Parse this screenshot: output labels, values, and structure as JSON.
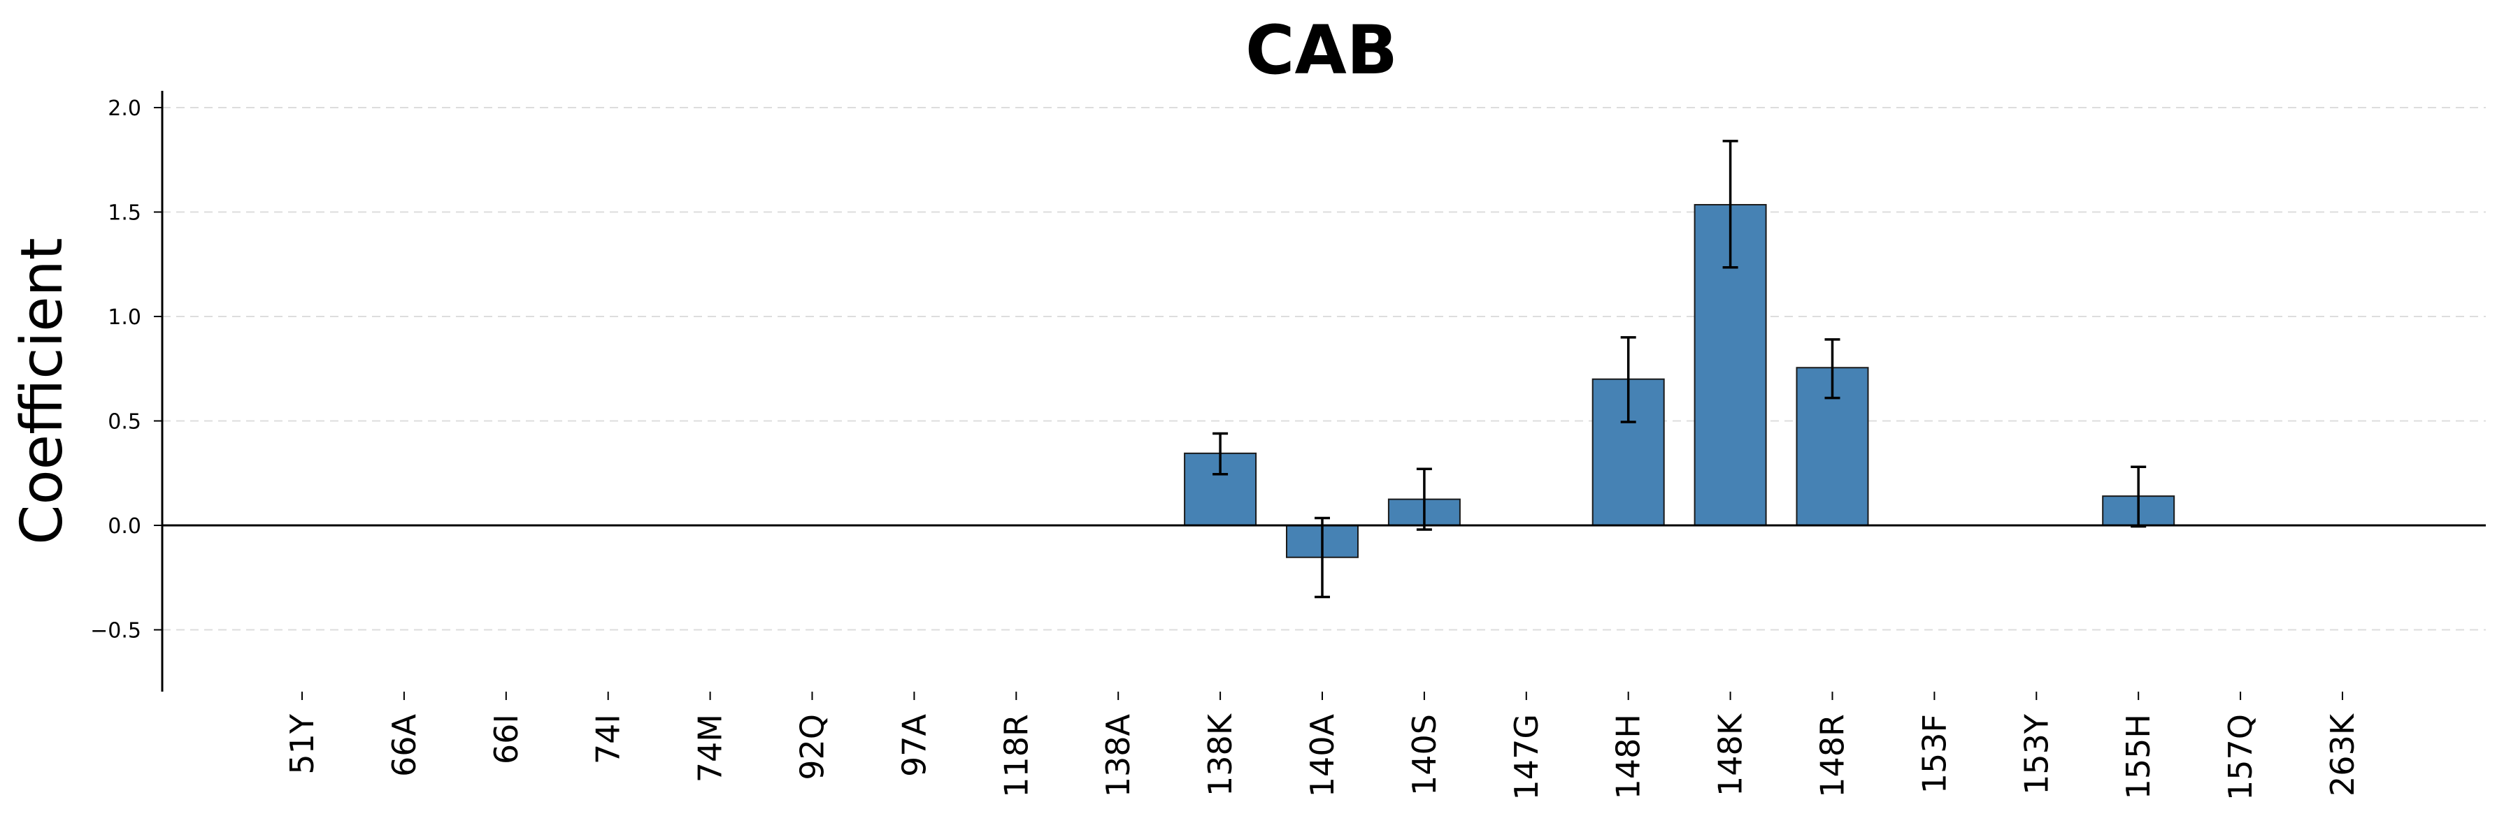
{
  "chart_data": {
    "type": "bar",
    "title": "CAB",
    "xlabel": "",
    "ylabel": "Coefficient",
    "ylim": [
      -0.78,
      2.08
    ],
    "yticks": [
      -0.5,
      0.0,
      0.5,
      1.0,
      1.5,
      2.0
    ],
    "ytick_labels": [
      "−0.5",
      "0.0",
      "0.5",
      "1.0",
      "1.5",
      "2.0"
    ],
    "grid": "horizontal dashed",
    "categories": [
      "51Y",
      "66A",
      "66I",
      "74I",
      "74M",
      "92Q",
      "97A",
      "118R",
      "138A",
      "138K",
      "140A",
      "140S",
      "147G",
      "148H",
      "148K",
      "148R",
      "153F",
      "153Y",
      "155H",
      "157Q",
      "263K"
    ],
    "values": [
      0,
      0,
      0,
      0,
      0,
      0,
      0,
      0,
      0,
      0.345,
      -0.153,
      0.125,
      0,
      0.7,
      1.535,
      0.755,
      0,
      0,
      0.14,
      0,
      0
    ],
    "error_low": [
      null,
      null,
      null,
      null,
      null,
      null,
      null,
      null,
      null,
      0.245,
      -0.343,
      -0.02,
      null,
      0.495,
      1.235,
      0.61,
      null,
      null,
      -0.005,
      null,
      null
    ],
    "error_high": [
      null,
      null,
      null,
      null,
      null,
      null,
      null,
      null,
      null,
      0.44,
      0.035,
      0.27,
      null,
      0.9,
      1.84,
      0.89,
      null,
      null,
      0.28,
      null,
      null
    ],
    "colors": {
      "bar": "#4682b4",
      "bar_edge": "#1a1a1a",
      "error": "#000000",
      "grid": "#dddddd",
      "axis": "#000000"
    }
  }
}
